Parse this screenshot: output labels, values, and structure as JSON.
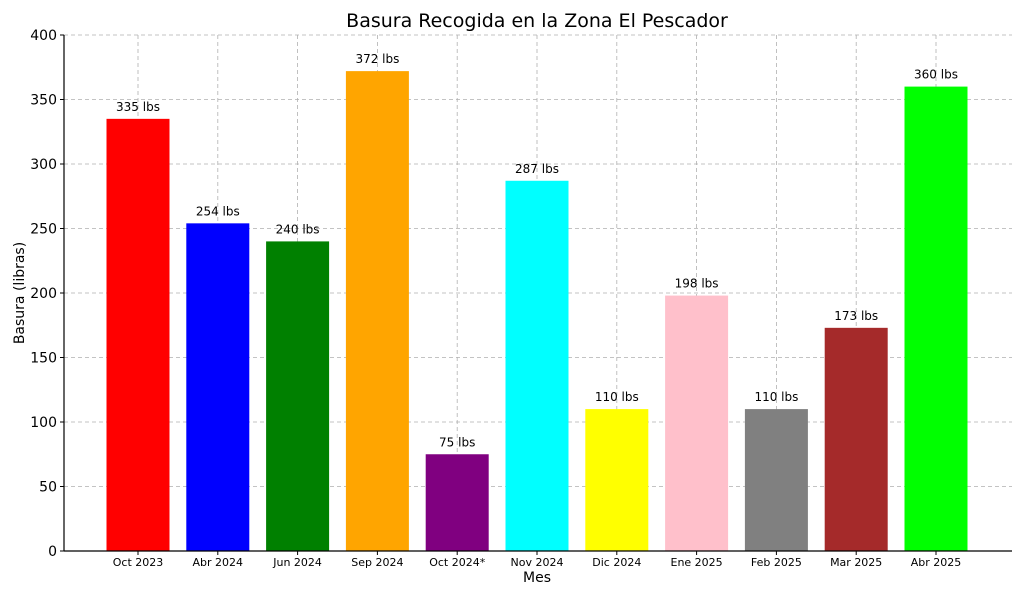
{
  "chart_data": {
    "type": "bar",
    "title": "Basura Recogida en la Zona El Pescador",
    "xlabel": "Mes",
    "ylabel": "Basura (libras)",
    "ylim": [
      0,
      400
    ],
    "yticks": [
      0,
      50,
      100,
      150,
      200,
      250,
      300,
      350,
      400
    ],
    "grid": true,
    "categories": [
      "Oct 2023",
      "Abr 2024",
      "Jun 2024",
      "Sep 2024",
      "Oct 2024*",
      "Nov 2024",
      "Dic 2024",
      "Ene 2025",
      "Feb 2025",
      "Mar 2025",
      "Abr 2025"
    ],
    "values": [
      335,
      254,
      240,
      372,
      75,
      287,
      110,
      198,
      110,
      173,
      360
    ],
    "value_labels": [
      "335 lbs",
      "254 lbs",
      "240 lbs",
      "372 lbs",
      "75 lbs",
      "287 lbs",
      "110 lbs",
      "198 lbs",
      "110 lbs",
      "173 lbs",
      "360 lbs"
    ],
    "colors": [
      "#ff0000",
      "#0000ff",
      "#008000",
      "#ffa500",
      "#800080",
      "#00ffff",
      "#ffff00",
      "#ffc0cb",
      "#808080",
      "#a52a2a",
      "#00ff00"
    ]
  }
}
